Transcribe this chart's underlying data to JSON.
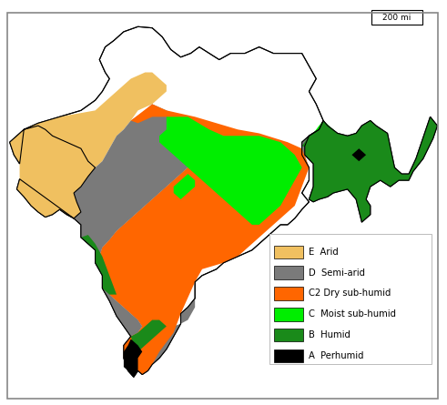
{
  "legend_entries": [
    {
      "label": "A  Perhumid",
      "color": "#000000"
    },
    {
      "label": "B  Humid",
      "color": "#1a8a1a"
    },
    {
      "label": "C  Moist sub-humid",
      "color": "#00ee00"
    },
    {
      "label": "C2 Dry sub-humid",
      "color": "#ff6600"
    },
    {
      "label": "D  Semi-arid",
      "color": "#7a7a7a"
    },
    {
      "label": "E  Arid",
      "color": "#f0c060"
    }
  ],
  "scale_text": "200 mi",
  "background_color": "#ffffff",
  "fig_width": 4.91,
  "fig_height": 4.45,
  "dpi": 100,
  "lon_min": 67.0,
  "lon_max": 98.0,
  "lat_min": 6.0,
  "lat_max": 37.5
}
